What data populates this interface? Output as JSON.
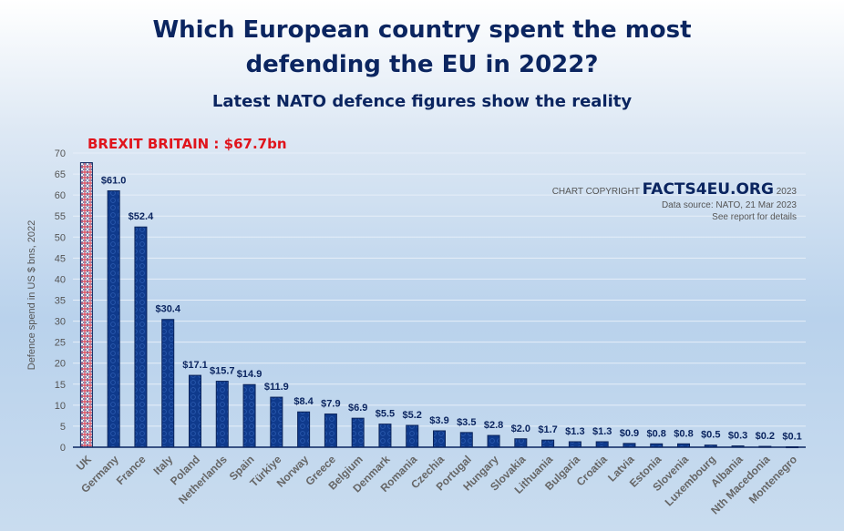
{
  "header": {
    "title_line1": "Which European country spent the most",
    "title_line2": "defending the EU in 2022?",
    "subtitle": "Latest NATO defence figures show the reality"
  },
  "credits": {
    "prefix": "CHART COPYRIGHT",
    "brand": "FACTS4EU.ORG",
    "year": "2023",
    "source": "Data source: NATO, 21 Mar 2023",
    "note": "See report for details"
  },
  "annotation": "BREXIT BRITAIN : $67.7bn",
  "colors": {
    "bar": "#0f3a8c",
    "bar_border": "#0a235a",
    "highlight_red": "#d8283a",
    "title": "#0b2560",
    "annotation": "#e0141c",
    "label": "#0b2560",
    "axis_text": "#555555"
  },
  "chart_data": {
    "type": "bar",
    "title": "Which European country spent the most defending the EU in 2022?",
    "subtitle": "Latest NATO defence figures show the reality",
    "xlabel": "",
    "ylabel": "Defence spend in US $ bns, 2022",
    "ylim": [
      0,
      70
    ],
    "yticks": [
      0,
      5,
      10,
      15,
      20,
      25,
      30,
      35,
      40,
      45,
      50,
      55,
      60,
      65,
      70
    ],
    "grid": true,
    "legend": "none",
    "categories": [
      "UK",
      "Germany",
      "France",
      "Italy",
      "Poland",
      "Netherlands",
      "Spain",
      "Türkiye",
      "Norway",
      "Greece",
      "Belgium",
      "Denmark",
      "Romania",
      "Czechia",
      "Portugal",
      "Hungary",
      "Slovakia",
      "Lithuania",
      "Bulgaria",
      "Croatia",
      "Latvia",
      "Estonia",
      "Slovenia",
      "Luxembourg",
      "Albania",
      "Nth Macedonia",
      "Montenegro"
    ],
    "values": [
      67.7,
      61.0,
      52.4,
      30.4,
      17.1,
      15.7,
      14.9,
      11.9,
      8.4,
      7.9,
      6.9,
      5.5,
      5.2,
      3.9,
      3.5,
      2.8,
      2.0,
      1.7,
      1.3,
      1.3,
      0.9,
      0.8,
      0.8,
      0.5,
      0.3,
      0.2,
      0.1
    ],
    "data_labels": [
      "",
      "$61.0",
      "$52.4",
      "$30.4",
      "$17.1",
      "$15.7",
      "$14.9",
      "$11.9",
      "$8.4",
      "$7.9",
      "$6.9",
      "$5.5",
      "$5.2",
      "$3.9",
      "$3.5",
      "$2.8",
      "$2.0",
      "$1.7",
      "$1.3",
      "$1.3",
      "$0.9",
      "$0.8",
      "$0.8",
      "$0.5",
      "$0.3",
      "$0.2",
      "$0.1"
    ],
    "highlight": "UK",
    "annotations": [
      "BREXIT BRITAIN : $67.7bn"
    ]
  }
}
